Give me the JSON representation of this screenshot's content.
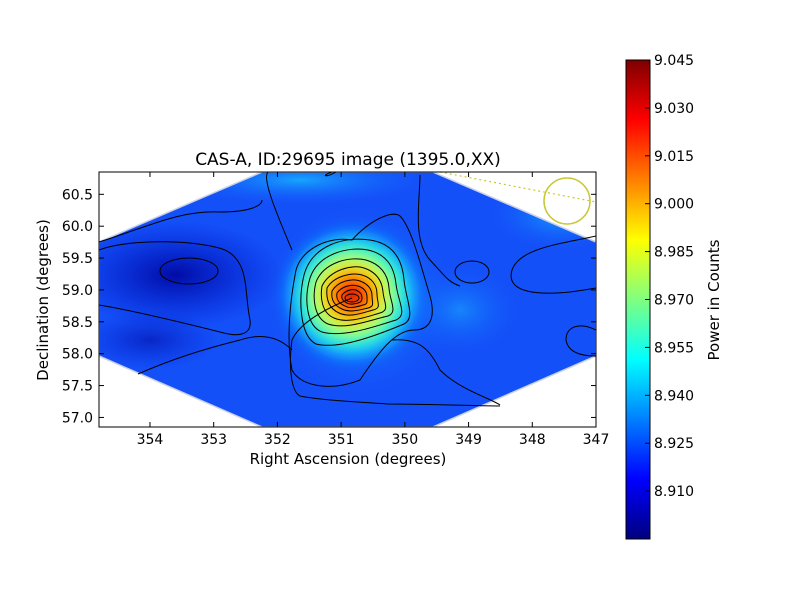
{
  "chart_data": {
    "type": "heatmap",
    "title": "CAS-A, ID:29695 image (1395.0,XX)",
    "xlabel": "Right Ascension (degrees)",
    "ylabel": "Declination (degrees)",
    "xlim": [
      354.8,
      347.0
    ],
    "ylim": [
      56.85,
      60.85
    ],
    "xticks": [
      354,
      353,
      352,
      351,
      350,
      349,
      348,
      347
    ],
    "xtick_labels": [
      "354",
      "353",
      "352",
      "351",
      "350",
      "349",
      "348",
      "347"
    ],
    "yticks": [
      57.0,
      57.5,
      58.0,
      58.5,
      59.0,
      59.5,
      60.0,
      60.5
    ],
    "ytick_labels": [
      "57.0",
      "57.5",
      "58.0",
      "58.5",
      "59.0",
      "59.5",
      "60.0",
      "60.5"
    ],
    "colormap": "jet",
    "colorbar": {
      "label": "Power in Counts",
      "range": [
        8.895,
        9.045
      ],
      "ticks": [
        8.91,
        8.925,
        8.94,
        8.955,
        8.97,
        8.985,
        9.0,
        9.015,
        9.03,
        9.045
      ],
      "tick_labels": [
        "8.910",
        "8.925",
        "8.940",
        "8.955",
        "8.970",
        "8.985",
        "9.000",
        "9.015",
        "9.030",
        "9.045"
      ]
    },
    "footprint": "hexagon",
    "peak": {
      "ra": 350.75,
      "dec": 58.85,
      "value": 9.045
    },
    "beam_marker": {
      "ra": 347.45,
      "dec": 60.38,
      "color": "#c8c832"
    },
    "contours": "black iso-power contours around the central peak",
    "grid": false
  }
}
